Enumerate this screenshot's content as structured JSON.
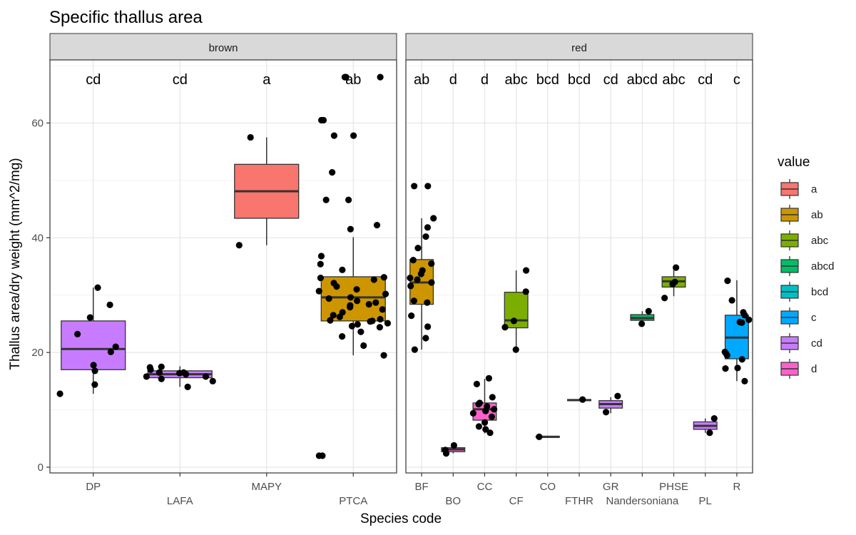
{
  "chart_data": {
    "type": "boxplot",
    "title": "Specific thallus area",
    "xlabel": "Species code",
    "ylabel": "Thallus area/dry weight (mm^2/mg)",
    "ylim": [
      -1,
      71
    ],
    "yticks": [
      0,
      20,
      40,
      60
    ],
    "grid": true,
    "legend": {
      "title": "value",
      "position": "right",
      "entries": [
        {
          "label": "a",
          "color": "#F8766D"
        },
        {
          "label": "ab",
          "color": "#CD9600"
        },
        {
          "label": "abc",
          "color": "#7CAE00"
        },
        {
          "label": "abcd",
          "color": "#00BE67"
        },
        {
          "label": "bcd",
          "color": "#00BFC4"
        },
        {
          "label": "c",
          "color": "#00A9FF"
        },
        {
          "label": "cd",
          "color": "#C77CFF"
        },
        {
          "label": "d",
          "color": "#FF61CC"
        }
      ]
    },
    "facets": [
      {
        "name": "brown",
        "categories": [
          "DP",
          "LAFA",
          "MAPY",
          "PTCA"
        ],
        "groups": [
          {
            "category": "DP",
            "letter": "cd",
            "q1": 17,
            "median": 20.6,
            "q3": 25.5,
            "whisker_low": 12.8,
            "whisker_high": 31.3,
            "points": [
              28.3,
              31.3,
              26.1,
              23.2,
              21,
              20.1,
              17.8,
              16.8,
              14.4,
              12.8
            ]
          },
          {
            "category": "LAFA",
            "letter": "cd",
            "q1": 15.6,
            "median": 16.2,
            "q3": 16.8,
            "whisker_low": 14,
            "whisker_high": 17.6,
            "points": [
              15,
              16.5,
              17.5,
              15.8,
              17.4,
              16.2,
              15.8,
              16.5,
              17,
              14,
              15.4,
              16.4
            ]
          },
          {
            "category": "MAPY",
            "letter": "a",
            "q1": 43.4,
            "median": 48.1,
            "q3": 52.8,
            "whisker_low": 38.7,
            "whisker_high": 57.5,
            "points": [
              38.7,
              57.5
            ]
          },
          {
            "category": "PTCA",
            "letter": "ab",
            "q1": 25.5,
            "median": 29.6,
            "q3": 33.2,
            "whisker_low": 19.5,
            "whisker_high": 40.1,
            "points": [
              68,
              68,
              68,
              60.5,
              60.5,
              57.8,
              57.8,
              51.4,
              46.6,
              46.6,
              42.2,
              41.5,
              36.8,
              35.4,
              34.4,
              33.1,
              33,
              32.7,
              32.1,
              31.5,
              31,
              30.7,
              30.2,
              29.6,
              29.4,
              29,
              28.7,
              28.4,
              28.2,
              27.9,
              27.5,
              27,
              26.5,
              26.2,
              25.8,
              25.6,
              25.5,
              25.4,
              25.1,
              24.9,
              24.6,
              24.4,
              23.6,
              22.8,
              21.2,
              19.5,
              2,
              2
            ]
          }
        ]
      },
      {
        "name": "red",
        "categories": [
          "BF",
          "BO",
          "CC",
          "CF",
          "CO",
          "FTHR",
          "GR",
          "Nandersoniana",
          "PHSE",
          "PL",
          "R"
        ],
        "groups": [
          {
            "category": "BF",
            "letter": "ab",
            "q1": 28.4,
            "median": 32.2,
            "q3": 36.2,
            "whisker_low": 20.5,
            "whisker_high": 43.4,
            "points": [
              49,
              49,
              43.4,
              41.8,
              40.2,
              38.2,
              36.1,
              35.5,
              34.3,
              33.7,
              33,
              32.7,
              32.2,
              31.6,
              29,
              28.7,
              26.4,
              24.5,
              22.5,
              20.5
            ]
          },
          {
            "category": "BO",
            "letter": "d",
            "q1": 2.7,
            "median": 3.1,
            "q3": 3.4,
            "whisker_low": 2.4,
            "whisker_high": 3.8,
            "points": [
              3.8,
              2.4,
              3
            ]
          },
          {
            "category": "CC",
            "letter": "d",
            "q1": 8.2,
            "median": 10.1,
            "q3": 11.2,
            "whisker_low": 5.9,
            "whisker_high": 15.4,
            "points": [
              15.5,
              14.5,
              12.2,
              11.2,
              11,
              10.6,
              10.1,
              9.8,
              9.4,
              8.8,
              7.8,
              7.1,
              6.6,
              6
            ]
          },
          {
            "category": "CF",
            "letter": "abc",
            "q1": 24.3,
            "median": 25.6,
            "q3": 30.5,
            "whisker_low": 20.4,
            "whisker_high": 34.3,
            "points": [
              34.3,
              30.6,
              25.5,
              24.4,
              20.5
            ]
          },
          {
            "category": "CO",
            "letter": "bcd",
            "q1": 5.2,
            "median": 5.3,
            "q3": 5.4,
            "whisker_low": 5.1,
            "whisker_high": 5.5,
            "points": [
              5.3
            ]
          },
          {
            "category": "FTHR",
            "letter": "bcd",
            "q1": 11.6,
            "median": 11.7,
            "q3": 11.8,
            "whisker_low": 11.5,
            "whisker_high": 11.9,
            "points": [
              11.8
            ]
          },
          {
            "category": "GR",
            "letter": "cd",
            "q1": 10.3,
            "median": 11,
            "q3": 11.6,
            "whisker_low": 9.4,
            "whisker_high": 12.2,
            "points": [
              12.4,
              9.6
            ]
          },
          {
            "category": "Nandersoniana",
            "letter": "abcd",
            "q1": 25.6,
            "median": 26,
            "q3": 26.6,
            "whisker_low": 25,
            "whisker_high": 27.2,
            "points": [
              27.2,
              25
            ]
          },
          {
            "category": "PHSE",
            "letter": "abc",
            "q1": 31.4,
            "median": 32.4,
            "q3": 33.2,
            "whisker_low": 29.8,
            "whisker_high": 34.8,
            "points": [
              34.8,
              32.3,
              31.9,
              29.5
            ]
          },
          {
            "category": "PL",
            "letter": "cd",
            "q1": 6.6,
            "median": 7.2,
            "q3": 7.9,
            "whisker_low": 6,
            "whisker_high": 8.5,
            "points": [
              8.5,
              6
            ]
          },
          {
            "category": "R",
            "letter": "c",
            "q1": 18.9,
            "median": 22.6,
            "q3": 26.5,
            "whisker_low": 15,
            "whisker_high": 32.6,
            "points": [
              32.5,
              29.1,
              27,
              26.5,
              25.7,
              25.3,
              25.2,
              20.1,
              19.8,
              19.5,
              18.8,
              17.3,
              17.2,
              15
            ]
          }
        ]
      }
    ]
  }
}
